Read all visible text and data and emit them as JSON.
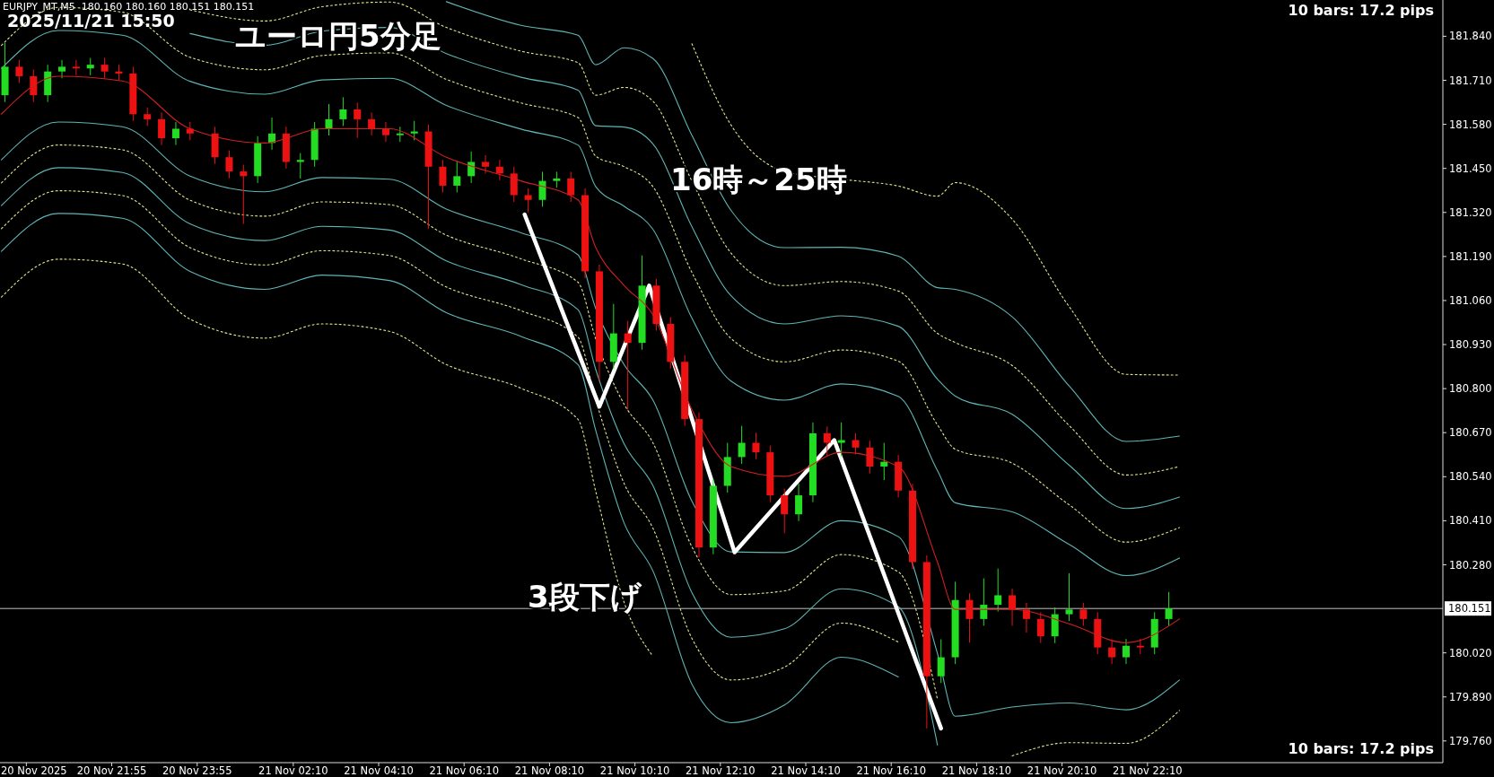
{
  "chart_data": {
    "type": "candlestick",
    "title": "EURJPY_MT,M5  180.160 180.160 180.151 180.151",
    "subtitle": "2025/11/21 15:50",
    "annotations": [
      "ユーロ円5分足",
      "16時～25時",
      "3段下げ",
      "10 bars: 17.2 pips",
      "10 bars: 17.2 pips",
      "20 Nov 2025"
    ],
    "x": [
      "2025-11-20T19:25",
      "2025-11-20T19:45",
      "2025-11-20T20:05",
      "2025-11-20T20:25",
      "2025-11-20T20:45",
      "2025-11-20T21:05",
      "2025-11-20T21:25",
      "2025-11-20T21:45",
      "2025-11-20T22:05",
      "2025-11-20T22:25",
      "2025-11-20T22:45",
      "2025-11-20T23:05",
      "2025-11-20T23:25",
      "2025-11-20T23:45",
      "2025-11-21T00:20",
      "2025-11-21T00:40",
      "2025-11-21T01:00",
      "2025-11-21T01:20",
      "2025-11-21T01:40",
      "2025-11-21T02:00",
      "2025-11-21T02:20",
      "2025-11-21T02:40",
      "2025-11-21T03:00",
      "2025-11-21T03:20",
      "2025-11-21T03:40",
      "2025-11-21T04:00",
      "2025-11-21T04:20",
      "2025-11-21T04:40",
      "2025-11-21T05:00",
      "2025-11-21T05:20",
      "2025-11-21T05:40",
      "2025-11-21T06:00",
      "2025-11-21T06:20",
      "2025-11-21T06:40",
      "2025-11-21T07:00",
      "2025-11-21T07:20",
      "2025-11-21T07:40",
      "2025-11-21T08:00",
      "2025-11-21T08:20",
      "2025-11-21T08:40",
      "2025-11-21T09:00",
      "2025-11-21T09:20",
      "2025-11-21T09:40",
      "2025-11-21T10:00",
      "2025-11-21T10:20",
      "2025-11-21T10:40",
      "2025-11-21T11:00",
      "2025-11-21T11:20",
      "2025-11-21T11:40",
      "2025-11-21T12:00",
      "2025-11-21T12:20",
      "2025-11-21T12:40",
      "2025-11-21T13:00",
      "2025-11-21T13:20",
      "2025-11-21T13:40",
      "2025-11-21T14:00",
      "2025-11-21T14:20",
      "2025-11-21T14:40",
      "2025-11-21T15:00",
      "2025-11-21T15:20",
      "2025-11-21T15:40",
      "2025-11-21T16:00",
      "2025-11-21T16:20",
      "2025-11-21T16:40",
      "2025-11-21T17:00",
      "2025-11-21T17:20",
      "2025-11-21T17:40",
      "2025-11-21T18:00",
      "2025-11-21T18:20",
      "2025-11-21T18:40",
      "2025-11-21T19:00",
      "2025-11-21T19:20",
      "2025-11-21T19:40",
      "2025-11-21T20:00",
      "2025-11-21T20:20",
      "2025-11-21T20:40",
      "2025-11-21T21:00",
      "2025-11-21T21:20",
      "2025-11-21T21:40",
      "2025-11-21T22:00",
      "2025-11-21T22:20",
      "2025-11-21T22:40"
    ],
    "ohlc": [
      [
        181.666,
        181.82,
        181.646,
        181.75
      ],
      [
        181.75,
        181.77,
        181.702,
        181.722
      ],
      [
        181.722,
        181.742,
        181.646,
        181.666
      ],
      [
        181.666,
        181.756,
        181.646,
        181.736
      ],
      [
        181.736,
        181.77,
        181.716,
        181.75
      ],
      [
        181.75,
        181.77,
        181.725,
        181.745
      ],
      [
        181.745,
        181.776,
        181.725,
        181.756
      ],
      [
        181.756,
        181.776,
        181.716,
        181.736
      ],
      [
        181.736,
        181.756,
        181.71,
        181.73
      ],
      [
        181.73,
        181.75,
        181.59,
        181.61
      ],
      [
        181.61,
        181.63,
        181.575,
        181.595
      ],
      [
        181.595,
        181.615,
        181.519,
        181.539
      ],
      [
        181.539,
        181.587,
        181.519,
        181.567
      ],
      [
        181.567,
        181.587,
        181.533,
        181.553
      ],
      [
        181.553,
        181.573,
        181.463,
        181.483
      ],
      [
        181.483,
        181.503,
        181.421,
        181.441
      ],
      [
        181.441,
        181.461,
        181.286,
        181.427
      ],
      [
        181.427,
        181.545,
        181.407,
        181.525
      ],
      [
        181.525,
        181.6,
        181.505,
        181.553
      ],
      [
        181.553,
        181.573,
        181.449,
        181.469
      ],
      [
        181.469,
        181.495,
        181.42,
        181.475
      ],
      [
        181.475,
        181.587,
        181.455,
        181.567
      ],
      [
        181.567,
        181.64,
        181.547,
        181.595
      ],
      [
        181.595,
        181.66,
        181.575,
        181.624
      ],
      [
        181.624,
        181.644,
        181.54,
        181.595
      ],
      [
        181.595,
        181.615,
        181.547,
        181.567
      ],
      [
        181.567,
        181.587,
        181.528,
        181.548
      ],
      [
        181.548,
        181.573,
        181.528,
        181.553
      ],
      [
        181.553,
        181.59,
        181.533,
        181.559
      ],
      [
        181.559,
        181.579,
        181.272,
        181.455
      ],
      [
        181.455,
        181.475,
        181.379,
        181.399
      ],
      [
        181.399,
        181.47,
        181.379,
        181.427
      ],
      [
        181.427,
        181.5,
        181.407,
        181.469
      ],
      [
        181.469,
        181.489,
        181.435,
        181.455
      ],
      [
        181.455,
        181.475,
        181.415,
        181.435
      ],
      [
        181.435,
        181.455,
        181.351,
        181.371
      ],
      [
        181.371,
        181.391,
        181.32,
        181.357
      ],
      [
        181.357,
        181.44,
        181.337,
        181.413
      ],
      [
        181.413,
        181.44,
        181.393,
        181.42
      ],
      [
        181.42,
        181.44,
        181.351,
        181.371
      ],
      [
        181.371,
        181.391,
        181.126,
        181.146
      ],
      [
        181.146,
        181.166,
        180.822,
        180.879
      ],
      [
        180.879,
        181.05,
        180.859,
        180.963
      ],
      [
        180.963,
        181.0,
        180.738,
        180.935
      ],
      [
        180.935,
        181.193,
        180.915,
        181.104
      ],
      [
        181.104,
        181.124,
        180.971,
        180.991
      ],
      [
        180.991,
        181.011,
        180.859,
        180.879
      ],
      [
        180.879,
        180.899,
        180.69,
        180.71
      ],
      [
        180.71,
        180.73,
        180.302,
        180.331
      ],
      [
        180.331,
        180.533,
        180.311,
        180.513
      ],
      [
        180.513,
        180.64,
        180.493,
        180.598
      ],
      [
        180.598,
        180.69,
        180.578,
        180.64
      ],
      [
        180.64,
        180.67,
        180.592,
        180.612
      ],
      [
        180.612,
        180.632,
        180.465,
        180.485
      ],
      [
        180.485,
        180.505,
        180.373,
        180.429
      ],
      [
        180.429,
        180.52,
        180.409,
        180.485
      ],
      [
        180.485,
        180.7,
        180.465,
        180.668
      ],
      [
        180.668,
        180.688,
        180.6,
        180.64
      ],
      [
        180.64,
        180.7,
        180.6,
        180.648
      ],
      [
        180.648,
        180.668,
        180.606,
        180.626
      ],
      [
        180.626,
        180.646,
        180.55,
        180.57
      ],
      [
        180.57,
        180.64,
        180.53,
        180.584
      ],
      [
        180.584,
        180.604,
        180.479,
        180.499
      ],
      [
        180.499,
        180.519,
        180.268,
        180.288
      ],
      [
        180.288,
        180.308,
        179.797,
        179.951
      ],
      [
        179.951,
        180.06,
        179.931,
        180.007
      ],
      [
        180.007,
        180.23,
        179.987,
        180.176
      ],
      [
        180.176,
        180.196,
        180.05,
        180.12
      ],
      [
        180.12,
        180.24,
        180.1,
        180.162
      ],
      [
        180.162,
        180.269,
        180.142,
        180.19
      ],
      [
        180.19,
        180.21,
        180.1,
        180.148
      ],
      [
        180.148,
        180.168,
        180.08,
        180.12
      ],
      [
        180.12,
        180.14,
        180.049,
        180.069
      ],
      [
        180.069,
        180.154,
        180.049,
        180.134
      ],
      [
        180.134,
        180.255,
        180.114,
        180.148
      ],
      [
        180.148,
        180.168,
        180.1,
        180.12
      ],
      [
        180.12,
        180.14,
        180.016,
        180.036
      ],
      [
        180.036,
        180.056,
        179.987,
        180.007
      ],
      [
        180.007,
        180.061,
        179.987,
        180.041
      ],
      [
        180.041,
        180.061,
        180.016,
        180.036
      ],
      [
        180.036,
        180.14,
        180.016,
        180.12
      ],
      [
        180.12,
        180.2,
        180.1,
        180.151
      ]
    ],
    "colors": [
      "#22dd22",
      "#ee1111",
      "#ee1111",
      "#22dd22",
      "#22dd22",
      "#ee1111",
      "#22dd22",
      "#ee1111",
      "#ee1111",
      "#ee1111",
      "#ee1111",
      "#ee1111",
      "#22dd22",
      "#ee1111",
      "#ee1111",
      "#ee1111",
      "#ee1111",
      "#22dd22",
      "#22dd22",
      "#ee1111",
      "#22dd22",
      "#22dd22",
      "#22dd22",
      "#22dd22",
      "#ee1111",
      "#ee1111",
      "#ee1111",
      "#22dd22",
      "#22dd22",
      "#ee1111",
      "#ee1111",
      "#22dd22",
      "#22dd22",
      "#ee1111",
      "#ee1111",
      "#ee1111",
      "#ee1111",
      "#22dd22",
      "#22dd22",
      "#ee1111",
      "#ee1111",
      "#ee1111",
      "#22dd22",
      "#ee1111",
      "#22dd22",
      "#ee1111",
      "#ee1111",
      "#ee1111",
      "#ee1111",
      "#22dd22",
      "#22dd22",
      "#22dd22",
      "#ee1111",
      "#ee1111",
      "#ee1111",
      "#22dd22",
      "#22dd22",
      "#ee1111",
      "#22dd22",
      "#ee1111",
      "#ee1111",
      "#22dd22",
      "#ee1111",
      "#ee1111",
      "#ee1111",
      "#22dd22",
      "#22dd22",
      "#ee1111",
      "#22dd22",
      "#22dd22",
      "#ee1111",
      "#ee1111",
      "#ee1111",
      "#22dd22",
      "#22dd22",
      "#ee1111",
      "#ee1111",
      "#ee1111",
      "#22dd22",
      "#ee1111",
      "#22dd22",
      "#22dd22"
    ],
    "series": [
      {
        "type": "line",
        "color": "#d02020",
        "line_style": "solid",
        "x": [
          "2025-11-20T19:20",
          "2025-11-20T20:40",
          "2025-11-20T22:10",
          "2025-11-20T23:45",
          "2025-11-21T01:30",
          "2025-11-21T02:50",
          "2025-11-21T04:25",
          "2025-11-21T05:45",
          "2025-11-21T07:30",
          "2025-11-21T08:50",
          "2025-11-21T09:15",
          "2025-11-21T09:55",
          "2025-11-21T10:35",
          "2025-11-21T11:30",
          "2025-11-21T12:25",
          "2025-11-21T13:40",
          "2025-11-21T15:00",
          "2025-11-21T16:20",
          "2025-11-21T17:15",
          "2025-11-21T17:40",
          "2025-11-21T19:00",
          "2025-11-21T20:20",
          "2025-11-21T21:40",
          "2025-11-21T22:55"
        ],
        "values": [
          181.61,
          181.722,
          181.708,
          181.567,
          181.525,
          181.567,
          181.567,
          181.483,
          181.413,
          181.357,
          181.216,
          181.104,
          181.019,
          180.738,
          180.57,
          180.541,
          180.612,
          180.57,
          180.288,
          180.148,
          180.148,
          180.106,
          180.05,
          180.12
        ]
      },
      {
        "type": "line",
        "color": "#5fb4b4",
        "line_style": "solid",
        "x": [
          "2025-11-20T19:20",
          "2025-11-20T20:40",
          "2025-11-20T22:10",
          "2025-11-20T23:45",
          "2025-11-21T01:30",
          "2025-11-21T02:50",
          "2025-11-21T04:25",
          "2025-11-21T05:45",
          "2025-11-21T07:30",
          "2025-11-21T08:50",
          "2025-11-21T09:15",
          "2025-11-21T09:55",
          "2025-11-21T10:35",
          "2025-11-21T11:30",
          "2025-11-21T12:25",
          "2025-11-21T13:40",
          "2025-11-21T15:00",
          "2025-11-21T16:20",
          "2025-11-21T17:15",
          "2025-11-21T17:40",
          "2025-11-21T19:00",
          "2025-11-21T20:20",
          "2025-11-21T21:40",
          "2025-11-21T22:55"
        ],
        "values": [
          181.745,
          181.857,
          181.843,
          181.707,
          181.669,
          181.711,
          181.716,
          181.636,
          181.566,
          181.519,
          181.396,
          181.338,
          181.271,
          181.008,
          180.822,
          180.766,
          180.814,
          180.777,
          180.558,
          180.463,
          180.436,
          180.34,
          180.248,
          180.3
        ]
      },
      {
        "type": "line",
        "color": "#e6e68c",
        "line_style": "dotted",
        "x": [
          "2025-11-20T19:20",
          "2025-11-20T20:40",
          "2025-11-20T22:10",
          "2025-11-20T23:45",
          "2025-11-21T01:30",
          "2025-11-21T02:50",
          "2025-11-21T04:25",
          "2025-11-21T05:45",
          "2025-11-21T07:30",
          "2025-11-21T08:50",
          "2025-11-21T09:15",
          "2025-11-21T09:55",
          "2025-11-21T10:35",
          "2025-11-21T11:30",
          "2025-11-21T12:25",
          "2025-11-21T13:40",
          "2025-11-21T15:00",
          "2025-11-21T16:20",
          "2025-11-21T17:15",
          "2025-11-21T17:40",
          "2025-11-21T19:00",
          "2025-11-21T20:20",
          "2025-11-21T21:40",
          "2025-11-21T22:55"
        ],
        "values": [
          181.813,
          181.925,
          181.911,
          181.778,
          181.741,
          181.783,
          181.791,
          181.713,
          181.643,
          181.6,
          181.486,
          181.455,
          181.397,
          181.143,
          180.948,
          180.879,
          180.914,
          180.881,
          180.693,
          180.621,
          180.58,
          180.457,
          180.347,
          180.39
        ]
      },
      {
        "type": "line",
        "color": "#5fb4b4",
        "line_style": "solid",
        "x": [
          "2025-11-20T23:45",
          "2025-11-21T01:30",
          "2025-11-21T02:50",
          "2025-11-21T04:25",
          "2025-11-21T05:45",
          "2025-11-21T07:30",
          "2025-11-21T08:50",
          "2025-11-21T09:15",
          "2025-11-21T09:55",
          "2025-11-21T10:35",
          "2025-11-21T11:30",
          "2025-11-21T12:25",
          "2025-11-21T13:40",
          "2025-11-21T15:00",
          "2025-11-21T16:20",
          "2025-11-21T17:15",
          "2025-11-21T17:40",
          "2025-11-21T19:00",
          "2025-11-21T20:20",
          "2025-11-21T21:40",
          "2025-11-21T22:55"
        ],
        "values": [
          181.848,
          181.813,
          181.855,
          181.866,
          181.789,
          181.719,
          181.681,
          181.576,
          181.572,
          181.523,
          181.278,
          181.074,
          180.991,
          181.015,
          180.984,
          180.828,
          180.778,
          180.724,
          180.574,
          180.446,
          180.48
        ]
      },
      {
        "type": "line",
        "color": "#e6e68c",
        "line_style": "dotted",
        "x": [
          "2025-11-20T23:45",
          "2025-11-21T01:30",
          "2025-11-21T02:50",
          "2025-11-21T04:25",
          "2025-11-21T05:45",
          "2025-11-21T07:30",
          "2025-11-21T08:50",
          "2025-11-21T09:15",
          "2025-11-21T09:55",
          "2025-11-21T10:35",
          "2025-11-21T11:30",
          "2025-11-21T12:25",
          "2025-11-21T13:40",
          "2025-11-21T15:00",
          "2025-11-21T16:20",
          "2025-11-21T17:15",
          "2025-11-21T17:40",
          "2025-11-21T19:00",
          "2025-11-21T20:20",
          "2025-11-21T21:40",
          "2025-11-21T22:55"
        ],
        "values": [
          181.918,
          181.885,
          181.927,
          181.941,
          181.866,
          181.796,
          181.762,
          181.666,
          181.689,
          181.649,
          181.413,
          181.2,
          181.104,
          181.116,
          181.088,
          180.963,
          180.936,
          180.868,
          180.691,
          180.545,
          180.57
        ]
      },
      {
        "type": "line",
        "color": "#5fb4b4",
        "line_style": "solid",
        "x": [
          "2025-11-21T05:45",
          "2025-11-21T07:30",
          "2025-11-21T08:50",
          "2025-11-21T09:15",
          "2025-11-21T09:55",
          "2025-11-21T10:35",
          "2025-11-21T11:30",
          "2025-11-21T12:25",
          "2025-11-21T13:40",
          "2025-11-21T15:00",
          "2025-11-21T16:20",
          "2025-11-21T17:15",
          "2025-11-21T17:40",
          "2025-11-21T19:00",
          "2025-11-21T20:20",
          "2025-11-21T21:40",
          "2025-11-21T22:55"
        ],
        "values": [
          181.942,
          181.872,
          181.843,
          181.756,
          181.806,
          181.775,
          181.548,
          181.326,
          181.216,
          181.217,
          181.191,
          181.098,
          181.093,
          181.012,
          180.808,
          180.644,
          180.66
        ]
      },
      {
        "type": "line",
        "color": "#e6e68c",
        "line_style": "dotted",
        "x": [
          "2025-11-21T11:30",
          "2025-11-21T12:25",
          "2025-11-21T13:40",
          "2025-11-21T15:00",
          "2025-11-21T16:20",
          "2025-11-21T17:15",
          "2025-11-21T17:40",
          "2025-11-21T19:00",
          "2025-11-21T20:20",
          "2025-11-21T21:40",
          "2025-11-21T22:55"
        ],
        "values": [
          181.818,
          181.578,
          181.441,
          181.418,
          181.398,
          181.368,
          181.408,
          181.3,
          181.042,
          180.842,
          180.84
        ]
      },
      {
        "type": "line",
        "color": "#5fb4b4",
        "line_style": "solid",
        "x": [
          "2025-11-20T19:20",
          "2025-11-20T20:40",
          "2025-11-20T22:10",
          "2025-11-20T23:45",
          "2025-11-21T01:30",
          "2025-11-21T02:50",
          "2025-11-21T04:25",
          "2025-11-21T05:45",
          "2025-11-21T07:30",
          "2025-11-21T08:50",
          "2025-11-21T09:15",
          "2025-11-21T09:55",
          "2025-11-21T10:35",
          "2025-11-21T11:30",
          "2025-11-21T12:25",
          "2025-11-21T13:40",
          "2025-11-21T15:00",
          "2025-11-21T16:20",
          "2025-11-21T17:15",
          "2025-11-21T17:40",
          "2025-11-21T19:00",
          "2025-11-21T20:20",
          "2025-11-21T21:40",
          "2025-11-21T22:55"
        ],
        "values": [
          181.475,
          181.587,
          181.573,
          181.427,
          181.381,
          181.423,
          181.418,
          181.33,
          181.26,
          181.195,
          181.036,
          180.87,
          180.767,
          180.468,
          180.318,
          180.316,
          180.41,
          180.363,
          180.018,
          179.833,
          179.86,
          179.872,
          179.852,
          179.94
        ]
      },
      {
        "type": "line",
        "color": "#e6e68c",
        "line_style": "dotted",
        "x": [
          "2025-11-20T19:20",
          "2025-11-20T20:40",
          "2025-11-20T22:10",
          "2025-11-20T23:45",
          "2025-11-21T01:30",
          "2025-11-21T02:50",
          "2025-11-21T04:25",
          "2025-11-21T05:45",
          "2025-11-21T07:30",
          "2025-11-21T08:50",
          "2025-11-21T09:15",
          "2025-11-21T09:55",
          "2025-11-21T10:35",
          "2025-11-21T11:30",
          "2025-11-21T12:25",
          "2025-11-21T13:40",
          "2025-11-21T15:00",
          "2025-11-21T16:20",
          "2025-11-21T17:15",
          "2025-11-21T17:40",
          "2025-11-21T19:00",
          "2025-11-21T20:20",
          "2025-11-21T21:40",
          "2025-11-21T22:55"
        ],
        "values": [
          181.407,
          181.519,
          181.505,
          181.356,
          181.309,
          181.351,
          181.343,
          181.253,
          181.183,
          181.114,
          180.946,
          180.753,
          180.641,
          180.333,
          180.192,
          180.203,
          180.31,
          180.259,
          179.883,
          null,
          179.716,
          179.755,
          179.753,
          179.85
        ]
      },
      {
        "type": "line",
        "color": "#5fb4b4",
        "line_style": "solid",
        "x": [
          "2025-11-20T19:20",
          "2025-11-20T20:40",
          "2025-11-20T22:10",
          "2025-11-20T23:45",
          "2025-11-21T01:30",
          "2025-11-21T02:50",
          "2025-11-21T04:25",
          "2025-11-21T05:45",
          "2025-11-21T07:30",
          "2025-11-21T08:50",
          "2025-11-21T09:15",
          "2025-11-21T09:55",
          "2025-11-21T10:35",
          "2025-11-21T11:30",
          "2025-11-21T12:25",
          "2025-11-21T13:40",
          "2025-11-21T15:00",
          "2025-11-21T16:20",
          "2025-11-21T17:15"
        ],
        "values": [
          181.34,
          181.452,
          181.438,
          181.286,
          181.237,
          181.279,
          181.268,
          181.177,
          181.107,
          181.033,
          180.856,
          180.636,
          180.515,
          180.198,
          180.066,
          180.091,
          180.209,
          180.156,
          179.748
        ]
      },
      {
        "type": "line",
        "color": "#e6e68c",
        "line_style": "dotted",
        "x": [
          "2025-11-20T19:20",
          "2025-11-20T20:40",
          "2025-11-20T22:10",
          "2025-11-20T23:45",
          "2025-11-21T01:30",
          "2025-11-21T02:50",
          "2025-11-21T04:25",
          "2025-11-21T05:45",
          "2025-11-21T07:30",
          "2025-11-21T08:50",
          "2025-11-21T09:15",
          "2025-11-21T09:55",
          "2025-11-21T10:35",
          "2025-11-21T11:30",
          "2025-11-21T12:25",
          "2025-11-21T13:40",
          "2025-11-21T15:00",
          "2025-11-21T16:20"
        ],
        "values": [
          181.272,
          181.384,
          181.37,
          181.216,
          181.165,
          181.207,
          181.193,
          181.1,
          181.03,
          180.952,
          180.766,
          180.519,
          180.389,
          180.063,
          179.94,
          179.978,
          180.108,
          180.052
        ]
      },
      {
        "type": "line",
        "color": "#5fb4b4",
        "line_style": "solid",
        "x": [
          "2025-11-20T19:20",
          "2025-11-20T20:40",
          "2025-11-20T22:10",
          "2025-11-20T23:45",
          "2025-11-21T01:30",
          "2025-11-21T02:50",
          "2025-11-21T04:25",
          "2025-11-21T05:45",
          "2025-11-21T07:30",
          "2025-11-21T08:50",
          "2025-11-21T09:15",
          "2025-11-21T09:55",
          "2025-11-21T10:35",
          "2025-11-21T11:30",
          "2025-11-21T12:25",
          "2025-11-21T13:40",
          "2025-11-21T15:00",
          "2025-11-21T16:20"
        ],
        "values": [
          181.205,
          181.317,
          181.303,
          181.146,
          181.093,
          181.135,
          181.119,
          181.024,
          180.954,
          180.871,
          180.676,
          180.402,
          180.263,
          179.928,
          179.814,
          179.866,
          180.007,
          179.949
        ]
      },
      {
        "type": "line",
        "color": "#e6e68c",
        "line_style": "dotted",
        "x": [
          "2025-11-20T19:20",
          "2025-11-20T20:40",
          "2025-11-20T22:10",
          "2025-11-20T23:45",
          "2025-11-21T01:30",
          "2025-11-21T02:50",
          "2025-11-21T04:25",
          "2025-11-21T05:45",
          "2025-11-21T07:30",
          "2025-11-21T08:50",
          "2025-11-21T09:15",
          "2025-11-21T09:55",
          "2025-11-21T10:35"
        ],
        "values": [
          181.07,
          181.182,
          181.168,
          181.005,
          180.949,
          180.991,
          180.969,
          180.871,
          180.801,
          180.709,
          180.496,
          180.168,
          180.011
        ]
      },
      {
        "type": "line",
        "color": "#ffffff",
        "line_style": "solid",
        "x": [
          "2025-11-21T07:35",
          "2025-11-21T09:20",
          "2025-11-21T10:30",
          "2025-11-21T12:30",
          "2025-11-21T14:50",
          "2025-11-21T17:20"
        ],
        "values": [
          181.314,
          180.747,
          181.104,
          180.317,
          180.648,
          179.797
        ]
      }
    ],
    "ref_lines": [
      {
        "axis": "y",
        "value": 180.151,
        "label": "180.151",
        "color": "#c0c0c0"
      }
    ],
    "xlim": [
      "2025-11-20T19:18",
      "2025-11-22T05:05"
    ],
    "ylim": [
      179.696,
      181.947
    ],
    "xticks": [
      {
        "value": "2025-11-20T19:55",
        "label": null
      },
      {
        "value": "2025-11-20T21:55",
        "label": "20 Nov 21:55"
      },
      {
        "value": "2025-11-20T23:55",
        "label": "20 Nov 23:55"
      },
      {
        "value": "2025-11-21T02:10",
        "label": "21 Nov 02:10"
      },
      {
        "value": "2025-11-21T04:10",
        "label": "21 Nov 04:10"
      },
      {
        "value": "2025-11-21T06:10",
        "label": "21 Nov 06:10"
      },
      {
        "value": "2025-11-21T08:10",
        "label": "21 Nov 08:10"
      },
      {
        "value": "2025-11-21T10:10",
        "label": "21 Nov 10:10"
      },
      {
        "value": "2025-11-21T12:10",
        "label": "21 Nov 12:10"
      },
      {
        "value": "2025-11-21T14:10",
        "label": "21 Nov 14:10"
      },
      {
        "value": "2025-11-21T16:10",
        "label": "21 Nov 16:10"
      },
      {
        "value": "2025-11-21T18:10",
        "label": "21 Nov 18:10"
      },
      {
        "value": "2025-11-21T20:10",
        "label": "21 Nov 20:10"
      },
      {
        "value": "2025-11-21T22:10",
        "label": "21 Nov 22:10"
      }
    ],
    "yticks": [
      {
        "value": 181.84,
        "label": "181.840"
      },
      {
        "value": 181.71,
        "label": "181.710"
      },
      {
        "value": 181.58,
        "label": "181.580"
      },
      {
        "value": 181.45,
        "label": "181.450"
      },
      {
        "value": 181.32,
        "label": "181.320"
      },
      {
        "value": 181.19,
        "label": "181.190"
      },
      {
        "value": 181.06,
        "label": "181.060"
      },
      {
        "value": 180.93,
        "label": "180.930"
      },
      {
        "value": 180.8,
        "label": "180.800"
      },
      {
        "value": 180.67,
        "label": "180.670"
      },
      {
        "value": 180.54,
        "label": "180.540"
      },
      {
        "value": 180.41,
        "label": "180.410"
      },
      {
        "value": 180.28,
        "label": "180.280"
      },
      {
        "value": 180.02,
        "label": "180.020"
      },
      {
        "value": 179.89,
        "label": "179.890"
      },
      {
        "value": 179.76,
        "label": "179.760"
      }
    ]
  }
}
